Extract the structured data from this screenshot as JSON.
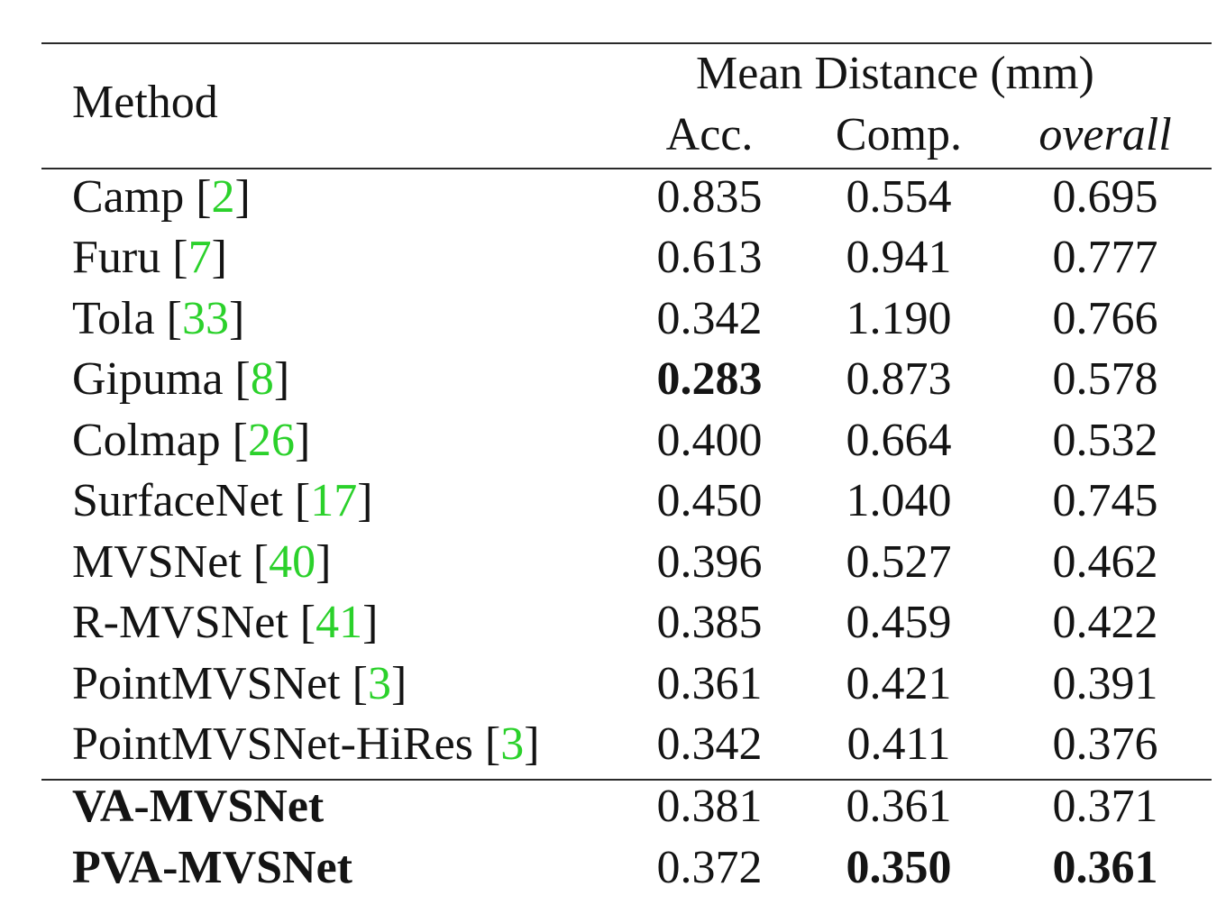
{
  "table": {
    "header": {
      "method": "Method",
      "group": "Mean Distance (mm)",
      "columns": [
        "Acc.",
        "Comp.",
        "overall"
      ]
    },
    "rows": [
      {
        "method": "Camp",
        "ref": "2",
        "acc": "0.835",
        "comp": "0.554",
        "overall": "0.695"
      },
      {
        "method": "Furu",
        "ref": "7",
        "acc": "0.613",
        "comp": "0.941",
        "overall": "0.777"
      },
      {
        "method": "Tola",
        "ref": "33",
        "acc": "0.342",
        "comp": "1.190",
        "overall": "0.766"
      },
      {
        "method": "Gipuma",
        "ref": "8",
        "acc": "0.283",
        "comp": "0.873",
        "overall": "0.578"
      },
      {
        "method": "Colmap",
        "ref": "26",
        "acc": "0.400",
        "comp": "0.664",
        "overall": "0.532"
      },
      {
        "method": "SurfaceNet",
        "ref": "17",
        "acc": "0.450",
        "comp": "1.040",
        "overall": "0.745"
      },
      {
        "method": "MVSNet",
        "ref": "40",
        "acc": "0.396",
        "comp": "0.527",
        "overall": "0.462"
      },
      {
        "method": "R-MVSNet",
        "ref": "41",
        "acc": "0.385",
        "comp": "0.459",
        "overall": "0.422"
      },
      {
        "method": "PointMVSNet",
        "ref": "3",
        "acc": "0.361",
        "comp": "0.421",
        "overall": "0.391"
      },
      {
        "method": "PointMVSNet-HiRes",
        "ref": "3",
        "acc": "0.342",
        "comp": "0.411",
        "overall": "0.376"
      }
    ],
    "ours": [
      {
        "method": "VA-MVSNet",
        "acc": "0.381",
        "comp": "0.361",
        "overall": "0.371"
      },
      {
        "method": "PVA-MVSNet",
        "acc": "0.372",
        "comp": "0.350",
        "overall": "0.361"
      }
    ]
  }
}
